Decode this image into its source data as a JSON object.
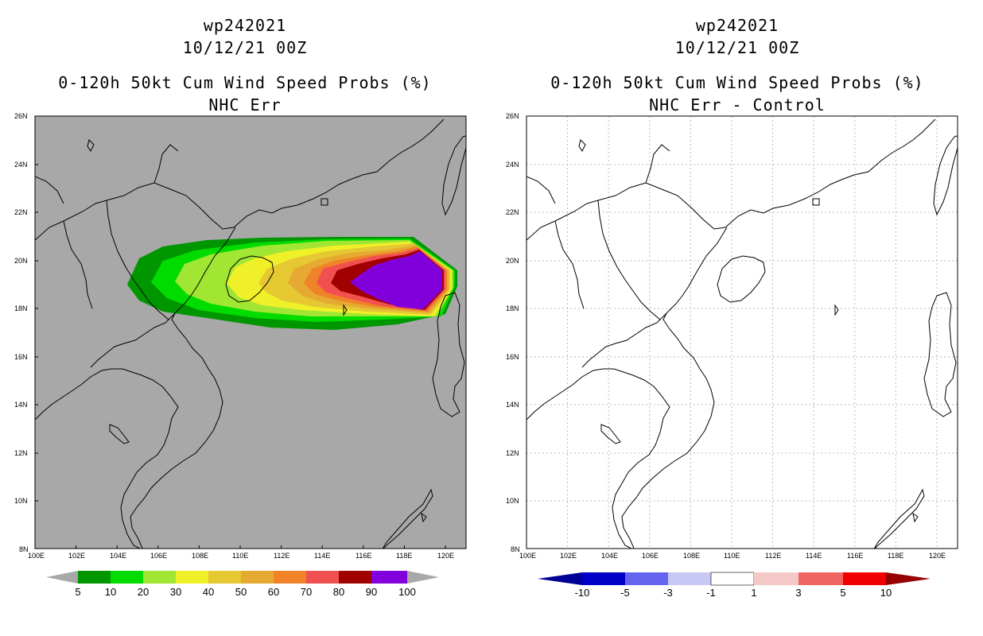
{
  "colors": {
    "panel_bg_left": "#a8a8a8",
    "panel_bg_right": "#ffffff",
    "coastline": "#000000",
    "grid": "#bbbbbb"
  },
  "left_panel": {
    "title_lines": [
      "wp242021",
      "10/12/21 00Z",
      "0-120h 50kt Cum Wind Speed Probs (%)",
      "NHC Err"
    ],
    "lat_labels": [
      "26N",
      "24N",
      "22N",
      "20N",
      "18N",
      "16N",
      "14N",
      "12N",
      "10N",
      "8N"
    ],
    "lon_labels": [
      "100E",
      "102E",
      "104E",
      "106E",
      "108E",
      "110E",
      "112E",
      "114E",
      "116E",
      "118E",
      "120E"
    ],
    "colorbar": {
      "labels": [
        "5",
        "10",
        "20",
        "30",
        "40",
        "50",
        "60",
        "70",
        "80",
        "90",
        "100"
      ],
      "colors": [
        "#009600",
        "#00dc00",
        "#a0e632",
        "#f0f028",
        "#e6c832",
        "#e6aa32",
        "#f08228",
        "#f05050",
        "#a00000",
        "#8200dc"
      ]
    }
  },
  "right_panel": {
    "title_lines": [
      "wp242021",
      "10/12/21 00Z",
      "0-120h 50kt Cum Wind Speed Probs (%)",
      "NHC Err - Control"
    ],
    "lat_labels": [
      "26N",
      "24N",
      "22N",
      "20N",
      "18N",
      "16N",
      "14N",
      "12N",
      "10N",
      "8N"
    ],
    "lon_labels": [
      "100E",
      "102E",
      "104E",
      "106E",
      "108E",
      "110E",
      "112E",
      "114E",
      "116E",
      "118E",
      "120E"
    ],
    "colorbar": {
      "labels": [
        "-10",
        "-5",
        "-3",
        "-1",
        "1",
        "3",
        "5",
        "10"
      ],
      "colors": [
        "#0000c8",
        "#6464f0",
        "#c8c8f5",
        "#ffffff",
        "#f5c8c8",
        "#f06464",
        "#f00000"
      ],
      "end_low": "#000096",
      "end_high": "#960000"
    }
  },
  "chart_data": [
    {
      "type": "heatmap",
      "title": "wp242021 10/12/21 00Z 0-120h 50kt Cum Wind Speed Probs (%) NHC Err",
      "lon_range": [
        100,
        121
      ],
      "lat_range": [
        8,
        26
      ],
      "levels": [
        5,
        10,
        20,
        30,
        40,
        50,
        60,
        70,
        80,
        90,
        100
      ],
      "max_probability_region": {
        "lon": [
          115.7,
          120.7
        ],
        "lat": [
          17.8,
          20.4
        ],
        "value": ">90"
      }
    },
    {
      "type": "heatmap",
      "title": "wp242021 10/12/21 00Z 0-120h 50kt Cum Wind Speed Probs (%) NHC Err - Control",
      "lon_range": [
        100,
        121
      ],
      "lat_range": [
        8,
        26
      ],
      "levels": [
        -10,
        -5,
        -3,
        -1,
        1,
        3,
        5,
        10
      ]
    }
  ]
}
